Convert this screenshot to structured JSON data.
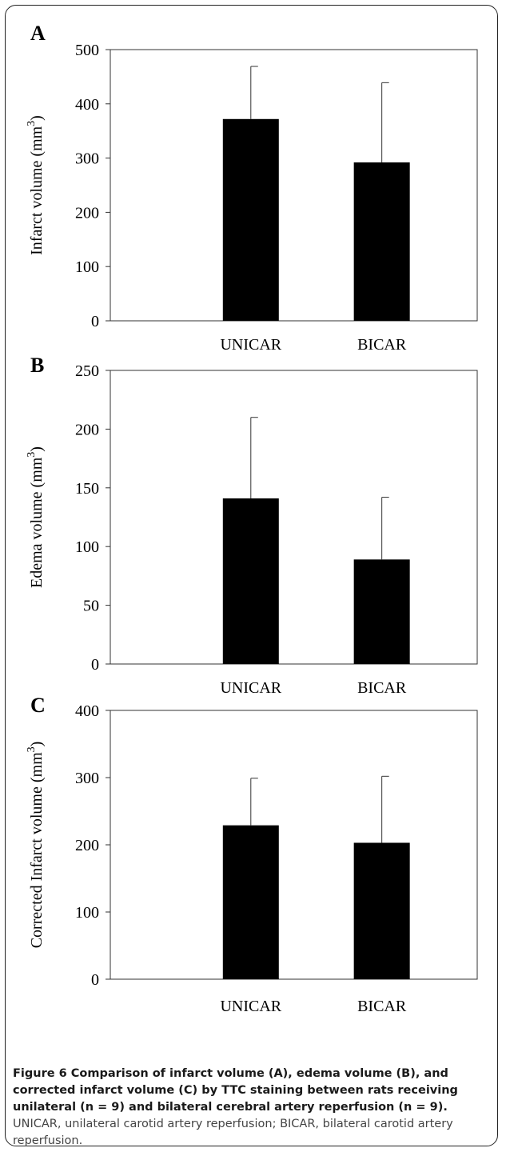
{
  "figure": {
    "caption_bold": "Figure 6 Comparison of infarct volume (A), edema volume (B), and corrected infarct volume (C) by TTC staining between rats receiving unilateral (n = 9) and bilateral cerebral artery reperfusion (n = 9).",
    "caption_rest": " UNICAR, unilateral carotid artery reperfusion; BICAR, bilateral carotid artery reperfusion."
  },
  "chart_data": [
    {
      "panel": "A",
      "type": "bar",
      "categories": [
        "UNICAR",
        "BICAR"
      ],
      "values": [
        372,
        292
      ],
      "errors": [
        97,
        147
      ],
      "ylabel": "Infarct volume (mm",
      "ylabel_sup": "3",
      "ylabel_close": ")",
      "ylim": [
        0,
        500
      ],
      "yticks": [
        0,
        100,
        200,
        300,
        400,
        500
      ],
      "bar_color": "#000000"
    },
    {
      "panel": "B",
      "type": "bar",
      "categories": [
        "UNICAR",
        "BICAR"
      ],
      "values": [
        141,
        89
      ],
      "errors": [
        69,
        53
      ],
      "ylabel": "Edema volume (mm",
      "ylabel_sup": "3",
      "ylabel_close": ")",
      "ylim": [
        0,
        250
      ],
      "yticks": [
        0,
        50,
        100,
        150,
        200,
        250
      ],
      "bar_color": "#000000"
    },
    {
      "panel": "C",
      "type": "bar",
      "categories": [
        "UNICAR",
        "BICAR"
      ],
      "values": [
        229,
        203
      ],
      "errors": [
        70,
        99
      ],
      "ylabel": "Corrected Infarct volume (mm",
      "ylabel_sup": "3",
      "ylabel_close": ")",
      "ylim": [
        0,
        400
      ],
      "yticks": [
        0,
        100,
        200,
        300,
        400
      ],
      "bar_color": "#000000"
    }
  ]
}
